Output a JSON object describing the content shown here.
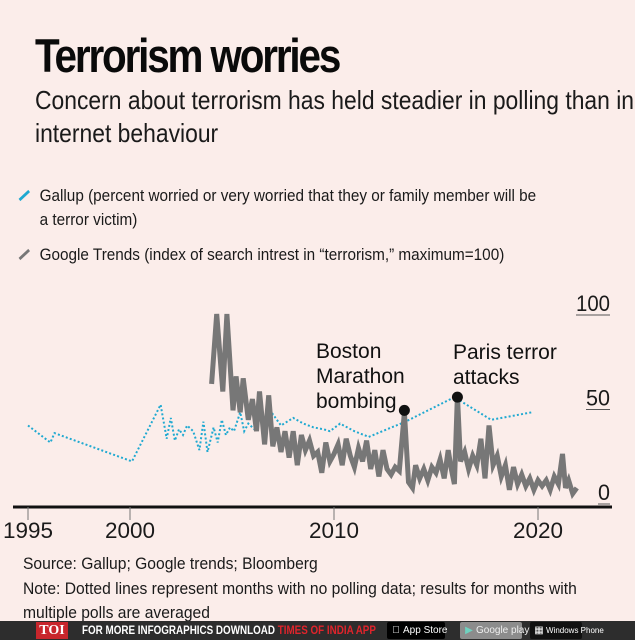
{
  "header": {
    "title": "Terrorism worries",
    "subtitle": "Concern about terrorism has held steadier in polling than in internet behaviour"
  },
  "legend": [
    {
      "label": "Gallup (percent worried or very worried that they or family member will be a terror victim)",
      "color": "#1fa9d1",
      "style": "dotted"
    },
    {
      "label": "Google Trends (index of search intrest in “terrorism,” maximum=100)",
      "color": "#777777",
      "style": "solid"
    }
  ],
  "chart_data": {
    "type": "line",
    "title": "Terrorism worries",
    "xlabel": "",
    "ylabel": "",
    "xlim": [
      1994.5,
      2023.5
    ],
    "ylim": [
      0,
      100
    ],
    "x_ticks": [
      1995,
      2000,
      2010,
      2020
    ],
    "y_ticks": [
      0,
      50,
      100
    ],
    "y_axis_side": "right",
    "grid": false,
    "legend_position": "top-left",
    "series": [
      {
        "name": "Gallup (percent worried or very worried that they or family member will be a terror victim)",
        "color": "#1fa9d1",
        "style": "dotted",
        "x": [
          1995.0,
          1996.1,
          1996.3,
          2000.1,
          2001.5,
          2001.8,
          2002.0,
          2002.2,
          2002.4,
          2002.6,
          2002.8,
          2003.1,
          2003.4,
          2003.6,
          2003.8,
          2004.1,
          2004.3,
          2004.5,
          2004.7,
          2004.9,
          2005.1,
          2005.4,
          2005.6,
          2005.8,
          2006.1,
          2006.4,
          2006.7,
          2007.0,
          2007.4,
          2008.0,
          2008.5,
          2009.0,
          2009.5,
          2009.8,
          2010.3,
          2011.0,
          2011.7,
          2013.5,
          2015.9,
          2017.7,
          2019.7
        ],
        "values": [
          41,
          32,
          37,
          22,
          52,
          34,
          45,
          33,
          39,
          36,
          41,
          38,
          28,
          43,
          27,
          40,
          32,
          44,
          36,
          40,
          38,
          48,
          38,
          42,
          39,
          45,
          43,
          47,
          41,
          45,
          42,
          40,
          39,
          38,
          42,
          38,
          35,
          43,
          56,
          44,
          48
        ]
      },
      {
        "name": "Google Trends (index of search intrest in “terrorism,” maximum=100)",
        "color": "#777777",
        "style": "solid",
        "x": [
          2004.0,
          2004.25,
          2004.55,
          2004.75,
          2005.05,
          2005.2,
          2005.4,
          2005.55,
          2005.8,
          2006.0,
          2006.2,
          2006.35,
          2006.6,
          2006.8,
          2007.0,
          2007.2,
          2007.4,
          2007.6,
          2007.8,
          2008.0,
          2008.2,
          2008.4,
          2008.6,
          2008.8,
          2009.0,
          2009.2,
          2009.4,
          2009.6,
          2009.8,
          2010.0,
          2010.2,
          2010.4,
          2010.6,
          2010.8,
          2011.0,
          2011.2,
          2011.4,
          2011.6,
          2011.8,
          2012.0,
          2012.2,
          2012.4,
          2012.6,
          2012.8,
          2013.0,
          2013.2,
          2013.45,
          2013.65,
          2013.85,
          2014.0,
          2014.2,
          2014.4,
          2014.6,
          2014.8,
          2015.0,
          2015.2,
          2015.4,
          2015.6,
          2015.75,
          2015.9,
          2016.05,
          2016.2,
          2016.4,
          2016.6,
          2016.8,
          2017.0,
          2017.2,
          2017.4,
          2017.6,
          2017.8,
          2018.0,
          2018.2,
          2018.4,
          2018.6,
          2018.8,
          2019.0,
          2019.2,
          2019.4,
          2019.6,
          2019.8,
          2020.0,
          2020.2,
          2020.4,
          2020.6,
          2020.8,
          2021.0,
          2021.2,
          2021.35,
          2021.5,
          2021.7,
          2021.9
        ],
        "values": [
          63,
          100,
          59,
          100,
          49,
          67,
          48,
          66,
          44,
          55,
          38,
          59,
          31,
          57,
          30,
          40,
          27,
          38,
          24,
          38,
          20,
          36,
          28,
          33,
          25,
          27,
          16,
          32,
          22,
          26,
          31,
          20,
          34,
          25,
          19,
          29,
          22,
          33,
          18,
          28,
          14,
          28,
          18,
          15,
          19,
          17,
          48,
          11,
          8,
          20,
          13,
          18,
          12,
          19,
          16,
          23,
          13,
          28,
          18,
          10,
          57,
          22,
          27,
          18,
          25,
          20,
          34,
          13,
          41,
          20,
          25,
          14,
          20,
          7,
          19,
          10,
          15,
          9,
          13,
          7,
          12,
          9,
          12,
          7,
          14,
          10,
          26,
          8,
          12,
          5,
          8
        ]
      }
    ],
    "annotations": [
      {
        "label": "Boston Marathon bombing",
        "x": 2013.45,
        "value": 49
      },
      {
        "label": "Paris terror attacks",
        "x": 2016.05,
        "value": 56
      }
    ]
  },
  "footnotes": {
    "source": "Source: Gallup; Google trends; Bloomberg",
    "note": "Note: Dotted lines represent months with no polling data; results for months with multiple polls are averaged"
  },
  "footer": {
    "logo": "TOI",
    "promo_text": "FOR MORE  INFOGRAPHICS DOWNLOAD ",
    "promo_app": "TIMES OF INDIA  APP",
    "app_store": "App Store",
    "google_play": "Google play",
    "windows_phone": "Windows Phone"
  }
}
